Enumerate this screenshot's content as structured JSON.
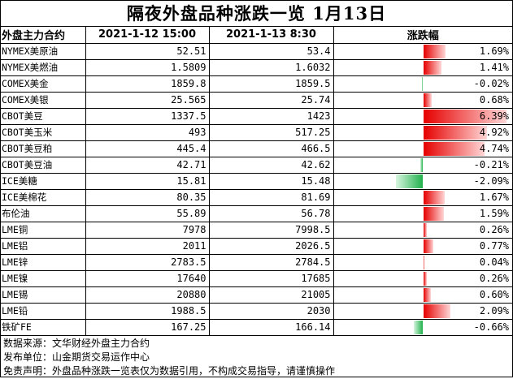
{
  "title": "隔夜外盘品种涨跌一览 1月13日",
  "headers": [
    "外盘主力合约",
    "2021-1-12 15:00",
    "2021-1-13 8:30",
    "涨跌幅"
  ],
  "rows": [
    {
      "name": "NYMEX美原油",
      "prev": "52.51",
      "curr": "53.4",
      "change": "1.69%",
      "pct": 1.69
    },
    {
      "name": "NYMEX美燃油",
      "prev": "1.5809",
      "curr": "1.6032",
      "change": "1.41%",
      "pct": 1.41
    },
    {
      "name": "COMEX美金",
      "prev": "1859.8",
      "curr": "1859.5",
      "change": "-0.02%",
      "pct": -0.02
    },
    {
      "name": "COMEX美银",
      "prev": "25.565",
      "curr": "25.74",
      "change": "0.68%",
      "pct": 0.68
    },
    {
      "name": "CBOT美豆",
      "prev": "1337.5",
      "curr": "1423",
      "change": "6.39%",
      "pct": 6.39
    },
    {
      "name": "CBOT美玉米",
      "prev": "493",
      "curr": "517.25",
      "change": "4.92%",
      "pct": 4.92
    },
    {
      "name": "CBOT美豆粕",
      "prev": "445.4",
      "curr": "466.5",
      "change": "4.74%",
      "pct": 4.74
    },
    {
      "name": "CBOT美豆油",
      "prev": "42.71",
      "curr": "42.62",
      "change": "-0.21%",
      "pct": -0.21
    },
    {
      "name": "ICE美糖",
      "prev": "15.81",
      "curr": "15.48",
      "change": "-2.09%",
      "pct": -2.09
    },
    {
      "name": "ICE美棉花",
      "prev": "80.35",
      "curr": "81.69",
      "change": "1.67%",
      "pct": 1.67
    },
    {
      "name": "布伦油",
      "prev": "55.89",
      "curr": "56.78",
      "change": "1.59%",
      "pct": 1.59
    },
    {
      "name": "LME铜",
      "prev": "7978",
      "curr": "7998.5",
      "change": "0.26%",
      "pct": 0.26
    },
    {
      "name": "LME铝",
      "prev": "2011",
      "curr": "2026.5",
      "change": "0.77%",
      "pct": 0.77
    },
    {
      "name": "LME锌",
      "prev": "2783.5",
      "curr": "2784.5",
      "change": "0.04%",
      "pct": 0.04
    },
    {
      "name": "LME镍",
      "prev": "17640",
      "curr": "17685",
      "change": "0.26%",
      "pct": 0.26
    },
    {
      "name": "LME锡",
      "prev": "20880",
      "curr": "21005",
      "change": "0.60%",
      "pct": 0.6
    },
    {
      "name": "LME铅",
      "prev": "1988.5",
      "curr": "2030",
      "change": "2.09%",
      "pct": 2.09
    },
    {
      "name": "铁矿FE",
      "prev": "167.25",
      "curr": "166.14",
      "change": "-0.66%",
      "pct": -0.66
    }
  ],
  "notes": [
    "数据来源：文华财经外盘主力合约",
    "发布单位：山金期货交易运作中心",
    "免责声明：外盘品种涨跌一览表仅为数据引用，不构成交易指导，请谨慎操作"
  ],
  "colors": {
    "positive": "#e60000",
    "negative": "#22b14c"
  }
}
